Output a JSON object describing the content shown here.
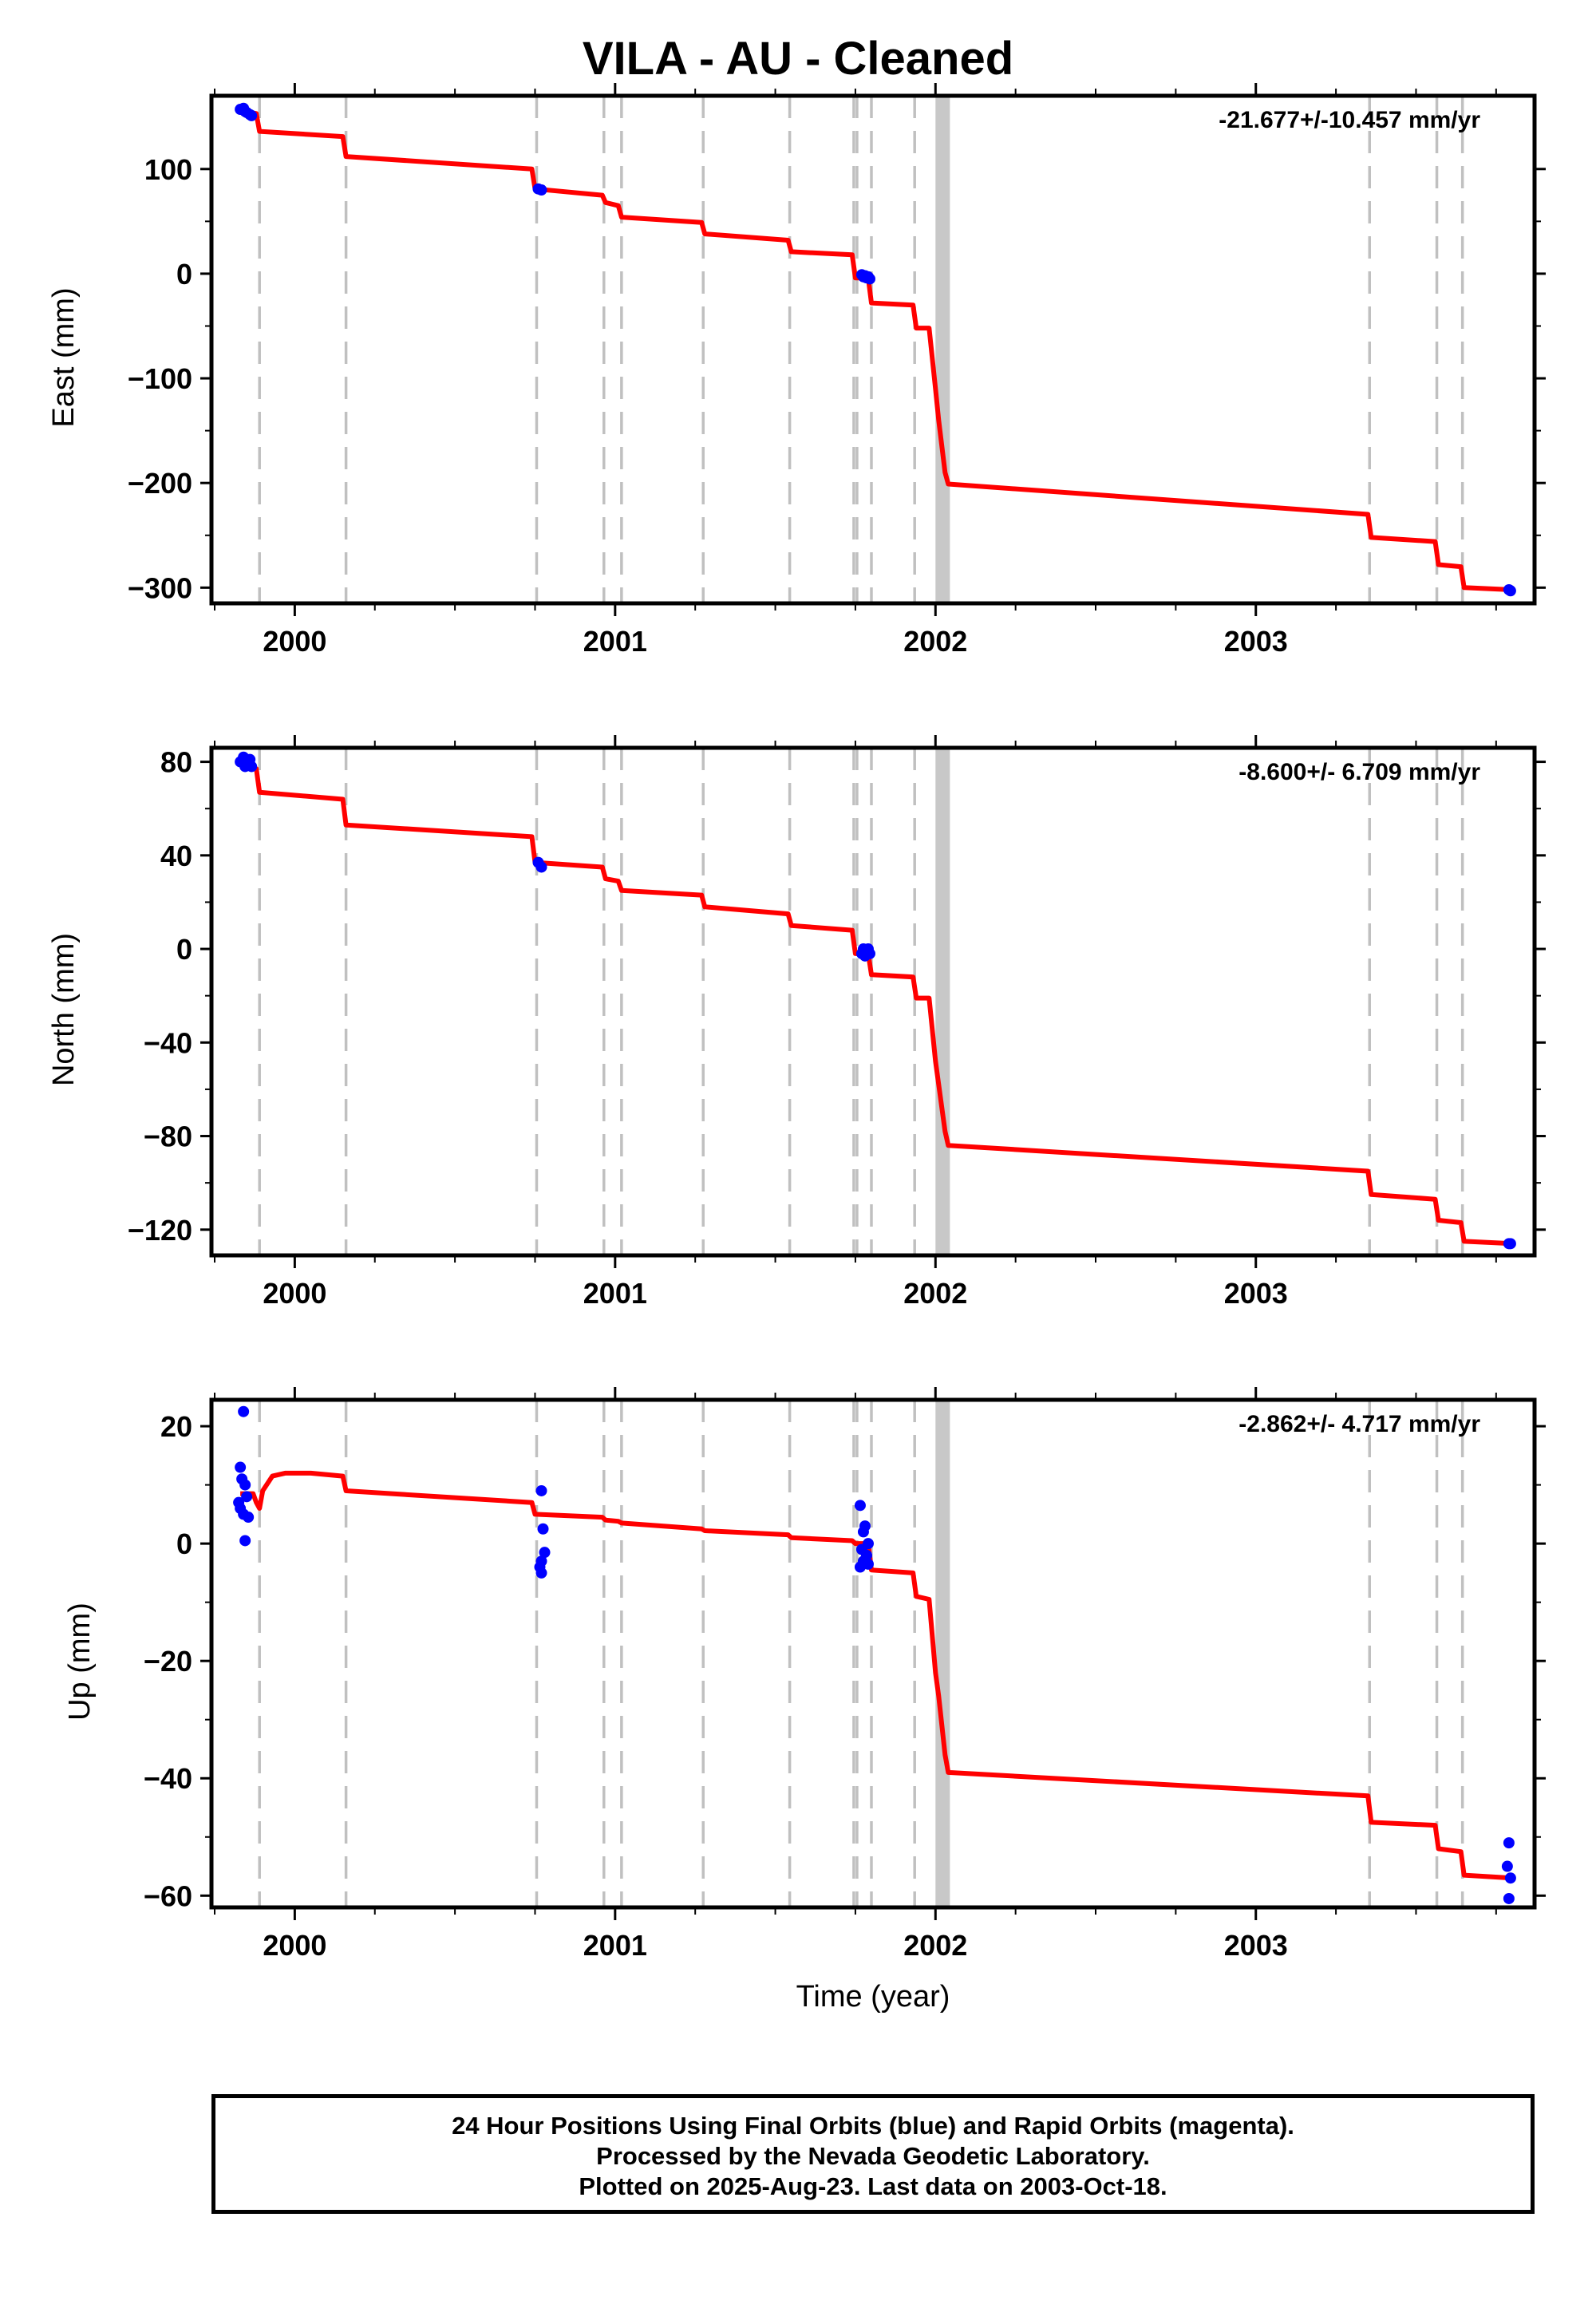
{
  "title": "VILA  - AU - Cleaned",
  "footer": {
    "line1": "24 Hour Positions Using Final Orbits (blue) and Rapid Orbits (magenta).",
    "line2": "Processed by the Nevada Geodetic Laboratory.",
    "line3": "Plotted on 2025-Aug-23. Last data on 2003-Oct-18."
  },
  "colors": {
    "model": "#ff0000",
    "final_orbits": "#0000ff",
    "rapid_orbits": "#ff00ff",
    "break_lines": "#c0c0c0"
  },
  "chart_data": [
    {
      "type": "scatter",
      "name": "east",
      "ylabel": "East (mm)",
      "xlabel": "",
      "xlim": [
        1999.74,
        2003.87
      ],
      "ylim": [
        -315,
        170
      ],
      "xticks": [
        2000,
        2001,
        2002,
        2003
      ],
      "yticks": [
        100,
        0,
        -100,
        -200,
        -300
      ],
      "ytick_labels": [
        "100",
        "0",
        "−100",
        "−200",
        "−300"
      ],
      "rate": "-21.677+/-10.457 mm/yr",
      "grid": false,
      "points": [
        [
          1999.83,
          157
        ],
        [
          1999.84,
          158
        ],
        [
          1999.845,
          155
        ],
        [
          1999.85,
          154
        ],
        [
          1999.86,
          152
        ],
        [
          1999.865,
          151
        ],
        [
          2000.76,
          81
        ],
        [
          2000.77,
          80
        ],
        [
          2001.77,
          -1
        ],
        [
          2001.775,
          -3
        ],
        [
          2001.78,
          -2
        ],
        [
          2001.785,
          -4
        ],
        [
          2001.79,
          -3
        ],
        [
          2001.795,
          -5
        ],
        [
          2003.79,
          -302
        ],
        [
          2003.795,
          -303
        ]
      ],
      "model": [
        [
          1999.83,
          156
        ],
        [
          1999.88,
          153
        ],
        [
          1999.89,
          136
        ],
        [
          2000.15,
          131
        ],
        [
          2000.16,
          112
        ],
        [
          2000.74,
          100
        ],
        [
          2000.75,
          81
        ],
        [
          2000.96,
          75
        ],
        [
          2000.97,
          68
        ],
        [
          2001.01,
          65
        ],
        [
          2001.02,
          54
        ],
        [
          2001.27,
          49
        ],
        [
          2001.28,
          38
        ],
        [
          2001.54,
          32
        ],
        [
          2001.55,
          21
        ],
        [
          2001.74,
          18
        ],
        [
          2001.75,
          -4
        ],
        [
          2001.79,
          -4
        ],
        [
          2001.8,
          -28
        ],
        [
          2001.93,
          -30
        ],
        [
          2001.94,
          -52
        ],
        [
          2001.98,
          -52
        ],
        [
          2002.0,
          -110
        ],
        [
          2002.01,
          -140
        ],
        [
          2002.03,
          -190
        ],
        [
          2002.04,
          -201
        ],
        [
          2003.35,
          -230
        ],
        [
          2003.36,
          -252
        ],
        [
          2003.56,
          -256
        ],
        [
          2003.57,
          -278
        ],
        [
          2003.64,
          -280
        ],
        [
          2003.65,
          -300
        ],
        [
          2003.8,
          -302
        ]
      ]
    },
    {
      "type": "scatter",
      "name": "north",
      "ylabel": "North (mm)",
      "xlabel": "",
      "xlim": [
        1999.74,
        2003.87
      ],
      "ylim": [
        -131,
        86
      ],
      "xticks": [
        2000,
        2001,
        2002,
        2003
      ],
      "yticks": [
        80,
        40,
        0,
        -40,
        -80,
        -120
      ],
      "ytick_labels": [
        "80",
        "40",
        "0",
        "−40",
        "−80",
        "−120"
      ],
      "rate": "-8.600+/- 6.709 mm/yr",
      "grid": false,
      "points": [
        [
          1999.83,
          80
        ],
        [
          1999.84,
          82
        ],
        [
          1999.845,
          78
        ],
        [
          1999.85,
          79
        ],
        [
          1999.86,
          81
        ],
        [
          1999.865,
          78
        ],
        [
          2000.76,
          37
        ],
        [
          2000.77,
          35
        ],
        [
          2001.77,
          -2
        ],
        [
          2001.775,
          0
        ],
        [
          2001.78,
          -3
        ],
        [
          2001.785,
          -1
        ],
        [
          2001.79,
          0
        ],
        [
          2001.795,
          -2
        ],
        [
          2003.79,
          -126
        ],
        [
          2003.795,
          -126
        ]
      ],
      "model": [
        [
          1999.83,
          78
        ],
        [
          1999.88,
          77
        ],
        [
          1999.89,
          67
        ],
        [
          2000.15,
          64
        ],
        [
          2000.16,
          53
        ],
        [
          2000.74,
          48
        ],
        [
          2000.75,
          37
        ],
        [
          2000.96,
          35
        ],
        [
          2000.97,
          30
        ],
        [
          2001.01,
          29
        ],
        [
          2001.02,
          25
        ],
        [
          2001.27,
          23
        ],
        [
          2001.28,
          18
        ],
        [
          2001.54,
          15
        ],
        [
          2001.55,
          10
        ],
        [
          2001.74,
          8
        ],
        [
          2001.75,
          -2
        ],
        [
          2001.79,
          -2
        ],
        [
          2001.8,
          -11
        ],
        [
          2001.93,
          -12
        ],
        [
          2001.94,
          -21
        ],
        [
          2001.98,
          -21
        ],
        [
          2002.0,
          -48
        ],
        [
          2002.01,
          -58
        ],
        [
          2002.03,
          -78
        ],
        [
          2002.04,
          -84
        ],
        [
          2003.35,
          -95
        ],
        [
          2003.36,
          -105
        ],
        [
          2003.56,
          -107
        ],
        [
          2003.57,
          -116
        ],
        [
          2003.64,
          -117
        ],
        [
          2003.65,
          -125
        ],
        [
          2003.8,
          -126
        ]
      ]
    },
    {
      "type": "scatter",
      "name": "up",
      "ylabel": "Up (mm)",
      "xlabel": "Time (year)",
      "xlim": [
        1999.74,
        2003.87
      ],
      "ylim": [
        -62,
        24.5
      ],
      "xticks": [
        2000,
        2001,
        2002,
        2003
      ],
      "yticks": [
        20,
        0,
        -20,
        -40,
        -60
      ],
      "ytick_labels": [
        "20",
        "0",
        "−20",
        "−40",
        "−60"
      ],
      "rate": "-2.862+/- 4.717 mm/yr",
      "grid": false,
      "points": [
        [
          1999.84,
          22.5
        ],
        [
          1999.83,
          13
        ],
        [
          1999.835,
          11
        ],
        [
          1999.845,
          10
        ],
        [
          1999.85,
          8
        ],
        [
          1999.825,
          7
        ],
        [
          1999.83,
          6
        ],
        [
          1999.84,
          5
        ],
        [
          1999.855,
          4.5
        ],
        [
          1999.845,
          0.5
        ],
        [
          2000.77,
          9
        ],
        [
          2000.775,
          2.5
        ],
        [
          2000.78,
          -1.5
        ],
        [
          2000.77,
          -3
        ],
        [
          2000.765,
          -4
        ],
        [
          2000.77,
          -5
        ],
        [
          2001.765,
          6.5
        ],
        [
          2001.78,
          3
        ],
        [
          2001.775,
          2
        ],
        [
          2001.79,
          0
        ],
        [
          2001.77,
          -1
        ],
        [
          2001.785,
          -2
        ],
        [
          2001.775,
          -3
        ],
        [
          2001.79,
          -3.5
        ],
        [
          2001.765,
          -4
        ],
        [
          2003.79,
          -51
        ],
        [
          2003.785,
          -55
        ],
        [
          2003.795,
          -57
        ],
        [
          2003.79,
          -60.5
        ]
      ],
      "model": [
        [
          1999.83,
          8.5
        ],
        [
          1999.87,
          8.5
        ],
        [
          1999.88,
          7
        ],
        [
          1999.89,
          6
        ],
        [
          1999.9,
          9
        ],
        [
          1999.93,
          11.5
        ],
        [
          1999.97,
          12
        ],
        [
          2000.05,
          12
        ],
        [
          2000.15,
          11.5
        ],
        [
          2000.16,
          9
        ],
        [
          2000.74,
          7
        ],
        [
          2000.75,
          5
        ],
        [
          2000.96,
          4.5
        ],
        [
          2000.97,
          4
        ],
        [
          2001.01,
          3.8
        ],
        [
          2001.02,
          3.5
        ],
        [
          2001.27,
          2.5
        ],
        [
          2001.28,
          2.2
        ],
        [
          2001.54,
          1.5
        ],
        [
          2001.55,
          1
        ],
        [
          2001.74,
          0.5
        ],
        [
          2001.75,
          0
        ],
        [
          2001.79,
          0
        ],
        [
          2001.8,
          -4.5
        ],
        [
          2001.93,
          -5
        ],
        [
          2001.94,
          -9
        ],
        [
          2001.98,
          -9.5
        ],
        [
          2002.0,
          -22
        ],
        [
          2002.01,
          -26
        ],
        [
          2002.03,
          -36
        ],
        [
          2002.04,
          -39
        ],
        [
          2003.35,
          -43
        ],
        [
          2003.36,
          -47.5
        ],
        [
          2003.56,
          -48
        ],
        [
          2003.57,
          -52
        ],
        [
          2003.64,
          -52.5
        ],
        [
          2003.65,
          -56.5
        ],
        [
          2003.8,
          -57
        ]
      ]
    }
  ],
  "break_lines": [
    1999.89,
    2000.16,
    2000.755,
    2000.965,
    2001.02,
    2001.275,
    2001.545,
    2001.745,
    2001.755,
    2001.8,
    2001.935,
    2003.355,
    2003.565,
    2003.645
  ],
  "event_bands": [
    [
      2002.0,
      2002.045
    ]
  ]
}
